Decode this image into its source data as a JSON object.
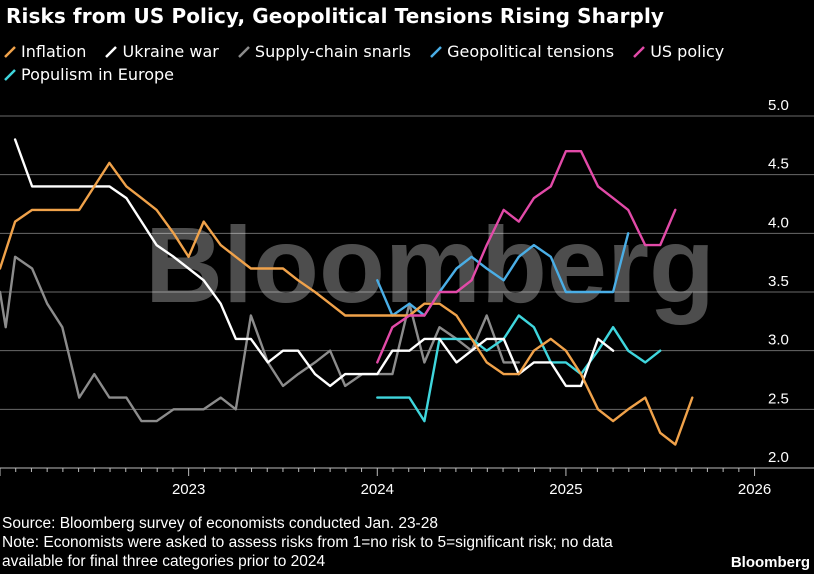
{
  "title": "Risks from US Policy, Geopolitical Tensions Rising Sharply",
  "watermark": "Bloomberg",
  "brand": "Bloomberg",
  "source": "Source: Bloomberg survey of economists conducted Jan. 23-28",
  "note_line1": "Note: Economists were asked to assess risks from 1=no risk to 5=significant risk; no data",
  "note_line2": "available for final three categories prior to 2024",
  "colors": {
    "background": "#000000",
    "grid": "#6a6a6a",
    "inflation": "#f0a24a",
    "ukraine": "#ffffff",
    "supply": "#8c8c8c",
    "geo": "#4aaee6",
    "us": "#e24aa8",
    "populism": "#3fd6dd"
  },
  "chart_data": {
    "type": "line",
    "title": "Risks from US Policy, Geopolitical Tensions Rising Sharply",
    "xlabel": "",
    "ylabel": "",
    "xlim": [
      2022.0,
      2026.05
    ],
    "ylim": [
      2.0,
      5.0
    ],
    "xticks": [
      "2023",
      "2024",
      "2025",
      "2026"
    ],
    "yticks": [
      "2.0",
      "2.5",
      "3.0",
      "3.5",
      "4.0",
      "4.5",
      "5.0"
    ],
    "grid": true,
    "legend_position": "top-left",
    "series": [
      {
        "name": "Inflation",
        "color_key": "inflation",
        "x": [
          2022.0,
          2022.08,
          2022.17,
          2022.25,
          2022.33,
          2022.42,
          2022.5,
          2022.58,
          2022.67,
          2022.75,
          2022.83,
          2022.92,
          2023.0,
          2023.08,
          2023.17,
          2023.25,
          2023.33,
          2023.42,
          2023.5,
          2023.58,
          2023.67,
          2023.75,
          2023.83,
          2023.92,
          2024.0,
          2024.08,
          2024.17,
          2024.25,
          2024.33,
          2024.42,
          2024.5,
          2024.58,
          2024.67,
          2024.75,
          2024.83,
          2024.92,
          2025.0,
          2025.08,
          2025.17,
          2025.25,
          2025.33,
          2025.42,
          2025.5,
          2025.58,
          2025.67,
          2025.75,
          2025.83,
          2025.92,
          2026.0
        ],
        "y": [
          3.7,
          4.1,
          4.2,
          4.2,
          4.2,
          4.2,
          4.4,
          4.6,
          4.4,
          4.3,
          4.2,
          4.0,
          3.8,
          4.1,
          3.9,
          3.8,
          3.7,
          3.7,
          3.7,
          3.6,
          3.5,
          3.4,
          3.3,
          3.3,
          3.3,
          3.3,
          3.3,
          3.4,
          3.4,
          3.3,
          3.1,
          2.9,
          2.8,
          2.8,
          3.0,
          3.1,
          3.0,
          2.8,
          2.5,
          2.4,
          2.5,
          2.6,
          2.3,
          2.2,
          2.6,
          null,
          null,
          null,
          null
        ]
      },
      {
        "name": "Ukraine war",
        "color_key": "ukraine",
        "x": [
          2022.08,
          2022.17,
          2022.25,
          2022.33,
          2022.42,
          2022.5,
          2022.58,
          2022.67,
          2022.75,
          2022.83,
          2022.92,
          2023.0,
          2023.08,
          2023.17,
          2023.25,
          2023.33,
          2023.42,
          2023.5,
          2023.58,
          2023.67,
          2023.75,
          2023.83,
          2023.92,
          2024.0,
          2024.08,
          2024.17,
          2024.25,
          2024.33,
          2024.42,
          2024.5,
          2024.58,
          2024.67,
          2024.75,
          2024.83,
          2024.92,
          2025.0,
          2025.08,
          2025.17,
          2025.25,
          2025.33,
          2025.42,
          2025.5,
          2025.58,
          2025.67,
          2025.75,
          2025.83,
          2025.92,
          2026.0
        ],
        "y": [
          4.8,
          4.4,
          4.4,
          4.4,
          4.4,
          4.4,
          4.4,
          4.3,
          4.1,
          3.9,
          3.8,
          3.7,
          3.6,
          3.4,
          3.1,
          3.1,
          2.9,
          3.0,
          3.0,
          2.8,
          2.7,
          2.8,
          2.8,
          2.8,
          3.0,
          3.0,
          3.1,
          3.1,
          2.9,
          3.0,
          3.1,
          3.1,
          2.8,
          2.9,
          2.9,
          2.7,
          2.7,
          3.1,
          3.0,
          null,
          null,
          null,
          null,
          null,
          null,
          null,
          null,
          null
        ]
      },
      {
        "name": "Supply-chain snarls",
        "color_key": "supply",
        "x": [
          2022.0,
          2022.03,
          2022.08,
          2022.17,
          2022.25,
          2022.33,
          2022.42,
          2022.5,
          2022.58,
          2022.67,
          2022.75,
          2022.83,
          2022.92,
          2023.0,
          2023.08,
          2023.17,
          2023.25,
          2023.33,
          2023.42,
          2023.5,
          2023.58,
          2023.67,
          2023.75,
          2023.83,
          2023.92,
          2024.0,
          2024.08,
          2024.17,
          2024.25,
          2024.33,
          2024.42,
          2024.5,
          2024.58,
          2024.67,
          2024.75,
          2024.83,
          2024.92,
          2025.0,
          2025.08,
          2025.17,
          2025.25,
          2025.33,
          2025.42,
          2025.5
        ],
        "y": [
          3.5,
          3.2,
          3.8,
          3.7,
          3.4,
          3.2,
          2.6,
          2.8,
          2.6,
          2.6,
          2.4,
          2.4,
          2.5,
          2.5,
          2.5,
          2.6,
          2.5,
          3.3,
          2.9,
          2.7,
          2.8,
          2.9,
          3.0,
          2.7,
          2.8,
          2.8,
          2.8,
          3.4,
          2.9,
          3.2,
          3.1,
          3.0,
          3.3,
          2.9,
          2.9,
          null,
          null,
          null,
          null,
          null,
          null,
          null,
          null,
          null
        ]
      },
      {
        "name": "Geopolitical tensions",
        "color_key": "geo",
        "x": [
          2024.0,
          2024.08,
          2024.17,
          2024.25,
          2024.33,
          2024.42,
          2024.5,
          2024.58,
          2024.67,
          2024.75,
          2024.83,
          2024.92,
          2025.0,
          2025.08,
          2025.17,
          2025.25,
          2025.33,
          2025.42,
          2025.5,
          2025.58,
          2025.67,
          2025.75,
          2025.83,
          2025.92,
          2026.0
        ],
        "y": [
          3.6,
          3.3,
          3.4,
          3.3,
          3.5,
          3.7,
          3.8,
          3.7,
          3.6,
          3.8,
          3.9,
          3.8,
          3.5,
          3.5,
          3.5,
          3.5,
          4.0,
          null,
          null,
          null,
          null,
          null,
          null,
          null,
          null
        ]
      },
      {
        "name": "US policy",
        "color_key": "us",
        "x": [
          2024.0,
          2024.08,
          2024.17,
          2024.25,
          2024.33,
          2024.42,
          2024.5,
          2024.58,
          2024.67,
          2024.75,
          2024.83,
          2024.92,
          2025.0,
          2025.08,
          2025.17,
          2025.25,
          2025.33,
          2025.42,
          2025.5,
          2025.58,
          2025.67,
          2025.75,
          2025.83,
          2025.92,
          2026.0
        ],
        "y": [
          2.9,
          3.2,
          3.3,
          3.3,
          3.5,
          3.5,
          3.6,
          3.9,
          4.2,
          4.1,
          4.3,
          4.4,
          4.7,
          4.7,
          4.4,
          4.3,
          4.2,
          3.9,
          3.9,
          4.2,
          null,
          null,
          null,
          null,
          null
        ]
      },
      {
        "name": "Populism in Europe",
        "color_key": "populism",
        "x": [
          2024.0,
          2024.08,
          2024.17,
          2024.25,
          2024.33,
          2024.42,
          2024.5,
          2024.58,
          2024.67,
          2024.75,
          2024.83,
          2024.92,
          2025.0,
          2025.08,
          2025.17,
          2025.25,
          2025.33,
          2025.42,
          2025.5,
          2025.58,
          2025.67,
          2025.75,
          2025.83,
          2025.92,
          2026.0
        ],
        "y": [
          2.6,
          2.6,
          2.6,
          2.4,
          3.1,
          3.1,
          3.1,
          3.0,
          3.1,
          3.3,
          3.2,
          2.9,
          2.9,
          2.8,
          3.0,
          3.2,
          3.0,
          2.9,
          3.0,
          null,
          null,
          null,
          null,
          null,
          null
        ]
      }
    ]
  }
}
